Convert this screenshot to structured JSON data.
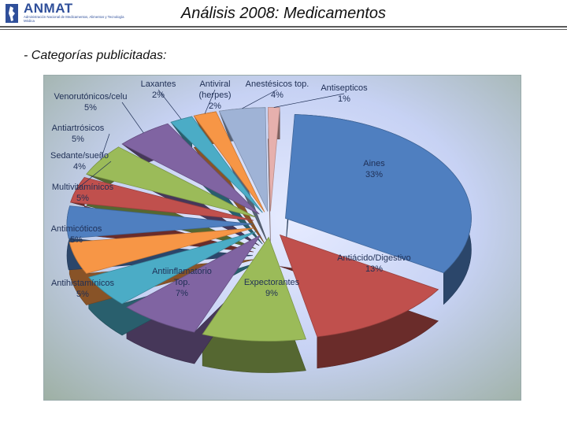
{
  "header": {
    "logo_text": "ANMAT",
    "logo_subtext": "Administración Nacional de Medicamentos, Alimentos y Tecnología Médica",
    "title": "Análisis 2008: Medicamentos"
  },
  "subtitle": "- Categorías publicitadas:",
  "colors": {
    "rule": "#5a5a5a",
    "title": "#111111"
  },
  "chart_data": {
    "type": "pie",
    "title": "",
    "style": "3d-exploded",
    "legend": "none",
    "slices": [
      {
        "label": "Aines",
        "value_label": "33%",
        "value": 33,
        "color": "#4f7fc0"
      },
      {
        "label": "Antiácido/Digestivo",
        "value_label": "13%",
        "value": 13,
        "color": "#c0504d"
      },
      {
        "label": "Expectorantes",
        "value_label": "9%",
        "value": 9,
        "color": "#9bbb59"
      },
      {
        "label": "Antiinflamatorio Top.",
        "label_lines": [
          "Antiinflamatorio",
          "Top."
        ],
        "value_label": "7%",
        "value": 7,
        "color": "#8064a2"
      },
      {
        "label": "Antihistamínicos",
        "value_label": "5%",
        "value": 5,
        "color": "#4bacc6"
      },
      {
        "label": "Antimicóticos",
        "value_label": "5%",
        "value": 5,
        "color": "#f79646"
      },
      {
        "label": "Multivitamínicos",
        "value_label": "5%",
        "value": 5,
        "color": "#4f7fc0"
      },
      {
        "label": "Sedante/sueño",
        "value_label": "4%",
        "value": 4,
        "color": "#c0504d"
      },
      {
        "label": "Antiartrósicos",
        "value_label": "5%",
        "value": 5,
        "color": "#9bbb59"
      },
      {
        "label": "Venorutónicos/celu",
        "value_label": "5%",
        "value": 5,
        "color": "#8064a2"
      },
      {
        "label": "Laxantes",
        "value_label": "2%",
        "value": 2,
        "color": "#4bacc6"
      },
      {
        "label": "Antiviral (herpes)",
        "label_lines": [
          "Antiviral",
          "(herpes)"
        ],
        "value_label": "2%",
        "value": 2,
        "color": "#f79646"
      },
      {
        "label": "Anestésicos top.",
        "value_label": "4%",
        "value": 4,
        "color": "#9fb3d6"
      },
      {
        "label": "Antisepticos",
        "value_label": "1%",
        "value": 1,
        "color": "#e6b0ad"
      }
    ]
  }
}
